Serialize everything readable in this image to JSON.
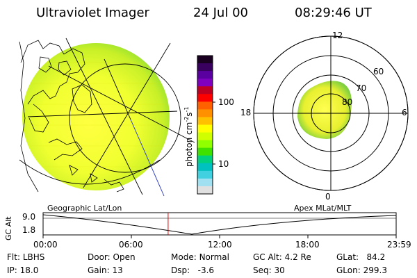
{
  "header": {
    "instrument": "Ultraviolet Imager",
    "date": "24 Jul 00",
    "time": "08:29:46 UT"
  },
  "colorbar": {
    "unit_label": "photon cm",
    "unit_sup_1": "-2",
    "unit_mid": "s",
    "unit_sup_2": "-1",
    "tick_high": "100",
    "tick_low": "10",
    "colors": [
      "#1a0020",
      "#3a0060",
      "#5a00a0",
      "#8000c0",
      "#c00020",
      "#ff0000",
      "#ff6000",
      "#ff9000",
      "#ffc000",
      "#ffff00",
      "#d0ff00",
      "#90ff00",
      "#40e000",
      "#00d080",
      "#00c0c0",
      "#40d0e0",
      "#a0e0f0",
      "#e0e0e0"
    ]
  },
  "polar_plot": {
    "label_top": "12",
    "label_bottom": "0",
    "label_left": "18",
    "label_right": "6",
    "ring_60": "60",
    "ring_70": "70",
    "ring_80": "80"
  },
  "timeline": {
    "label_left": "Geographic Lat/Lon",
    "label_right": "Apex MLat/MLT",
    "y_axis_label": "GC Alt",
    "y_top": "9.0",
    "y_bottom": "1.8",
    "x_ticks": [
      "00:00",
      "06:00",
      "12:00",
      "18:00",
      "23:59"
    ],
    "current_time_fraction": 0.3541
  },
  "status": {
    "flt_label": "Flt:",
    "flt_value": "LBHS",
    "ip_label": "IP:",
    "ip_value": "18.0",
    "door_label": "Door:",
    "door_value": "Open",
    "gain_label": "Gain:",
    "gain_value": "13",
    "mode_label": "Mode:",
    "mode_value": "Normal",
    "dsp_label": "Dsp:",
    "dsp_value": "-3.6",
    "gcalt_label": "GC Alt:",
    "gcalt_value": "4.2 Re",
    "seq_label": "Seq:",
    "seq_value": "30",
    "glat_label": "GLat:",
    "glat_value": "84.2",
    "glon_label": "GLon:",
    "glon_value": "299.3"
  }
}
